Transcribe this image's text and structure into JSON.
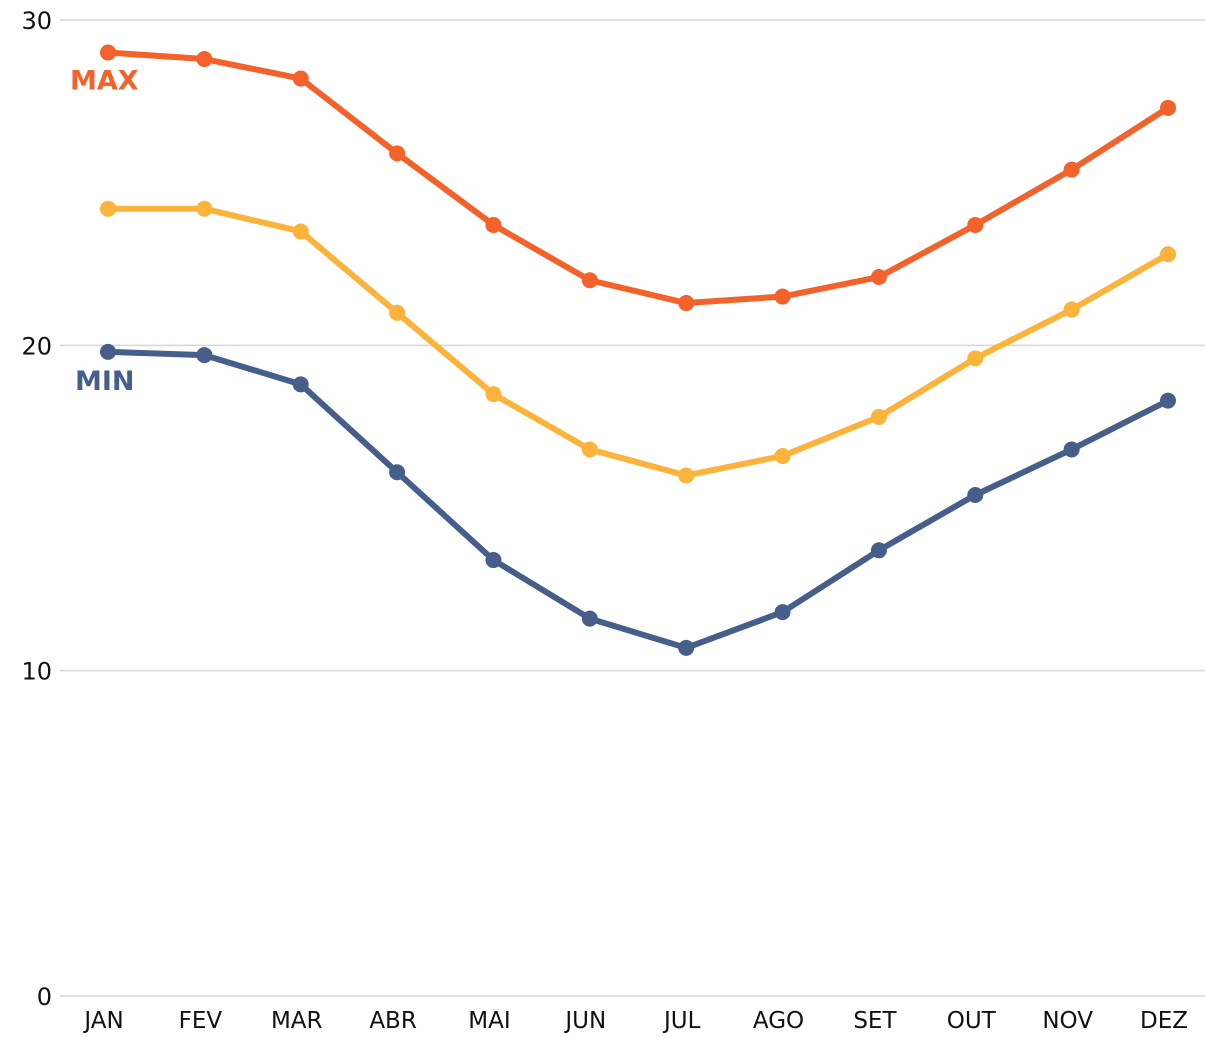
{
  "chart_data": {
    "type": "line",
    "categories": [
      "JAN",
      "FEV",
      "MAR",
      "ABR",
      "MAI",
      "JUN",
      "JUL",
      "AGO",
      "SET",
      "OUT",
      "NOV",
      "DEZ"
    ],
    "ylim": [
      0,
      30
    ],
    "yticks": [
      "0",
      "10",
      "20",
      "30"
    ],
    "grid": true,
    "series": [
      {
        "name": "MAX",
        "color": "#f2622a",
        "values": [
          29.0,
          28.8,
          28.2,
          25.9,
          23.7,
          22.0,
          21.3,
          21.5,
          22.1,
          23.7,
          25.4,
          27.3
        ]
      },
      {
        "name": "",
        "color": "#fbb33b",
        "values": [
          24.2,
          24.2,
          23.5,
          21.0,
          18.5,
          16.8,
          16.0,
          16.6,
          17.8,
          19.6,
          21.1,
          22.8
        ]
      },
      {
        "name": "MIN",
        "color": "#455e8a",
        "values": [
          19.8,
          19.7,
          18.8,
          16.1,
          13.4,
          11.6,
          10.7,
          11.8,
          13.7,
          15.4,
          16.8,
          18.3
        ]
      }
    ]
  }
}
